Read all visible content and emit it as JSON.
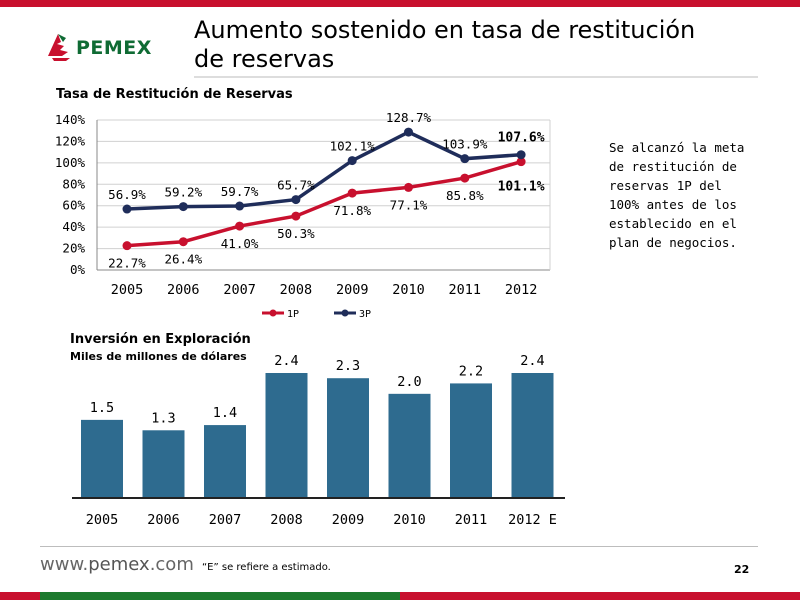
{
  "header": {
    "brand": "PEMEX",
    "title_line1": "Aumento sostenido en tasa de restitución",
    "title_line2": "de reservas"
  },
  "charts": {
    "reserves_title": "Tasa de Restitución de Reservas",
    "investment_title": "Inversión en Exploración",
    "investment_subtitle": "Miles de millones de dólares"
  },
  "note": "Se alcanzó la meta de restitución de reservas 1P del 100% antes de los establecido en el plan de negocios.",
  "footer": {
    "url_prefix": "www.",
    "url_brand": "pemex",
    "url_suffix": ".com",
    "footnote": "“E” se refiere a estimado.",
    "page_number": "22"
  },
  "colors": {
    "red_series": "#c8102e",
    "navy_series": "#1f2d5a",
    "bar": "#2e6b8f",
    "brand_green": "#0f6b34"
  },
  "chart_data": [
    {
      "type": "line",
      "title": "Tasa de Restitución de Reservas",
      "categories": [
        "2005",
        "2006",
        "2007",
        "2008",
        "2009",
        "2010",
        "2011",
        "2012"
      ],
      "y_ticks": [
        "0%",
        "20%",
        "40%",
        "60%",
        "80%",
        "100%",
        "120%",
        "140%"
      ],
      "ylim": [
        0,
        140
      ],
      "grid": true,
      "legend": "bottom",
      "series": [
        {
          "name": "1P",
          "values": [
            22.7,
            26.4,
            41.0,
            50.3,
            71.8,
            77.1,
            85.8,
            101.1
          ],
          "labels": [
            "22.7%",
            "26.4%",
            "41.0%",
            "50.3%",
            "71.8%",
            "77.1%",
            "85.8%",
            "101.1%"
          ]
        },
        {
          "name": "3P",
          "values": [
            56.9,
            59.2,
            59.7,
            65.7,
            102.1,
            128.7,
            103.9,
            107.6
          ],
          "labels": [
            "56.9%",
            "59.2%",
            "59.7%",
            "65.7%",
            "102.1%",
            "128.7%",
            "103.9%",
            "107.6%"
          ]
        }
      ]
    },
    {
      "type": "bar",
      "title": "Inversión en Exploración",
      "subtitle": "Miles de millones de dólares",
      "categories": [
        "2005",
        "2006",
        "2007",
        "2008",
        "2009",
        "2010",
        "2011",
        "2012 E"
      ],
      "values": [
        1.5,
        1.3,
        1.4,
        2.4,
        2.3,
        2.0,
        2.2,
        2.4
      ],
      "labels": [
        "1.5",
        "1.3",
        "1.4",
        "2.4",
        "2.3",
        "2.0",
        "2.2",
        "2.4"
      ],
      "ylim": [
        0,
        2.4
      ]
    }
  ]
}
